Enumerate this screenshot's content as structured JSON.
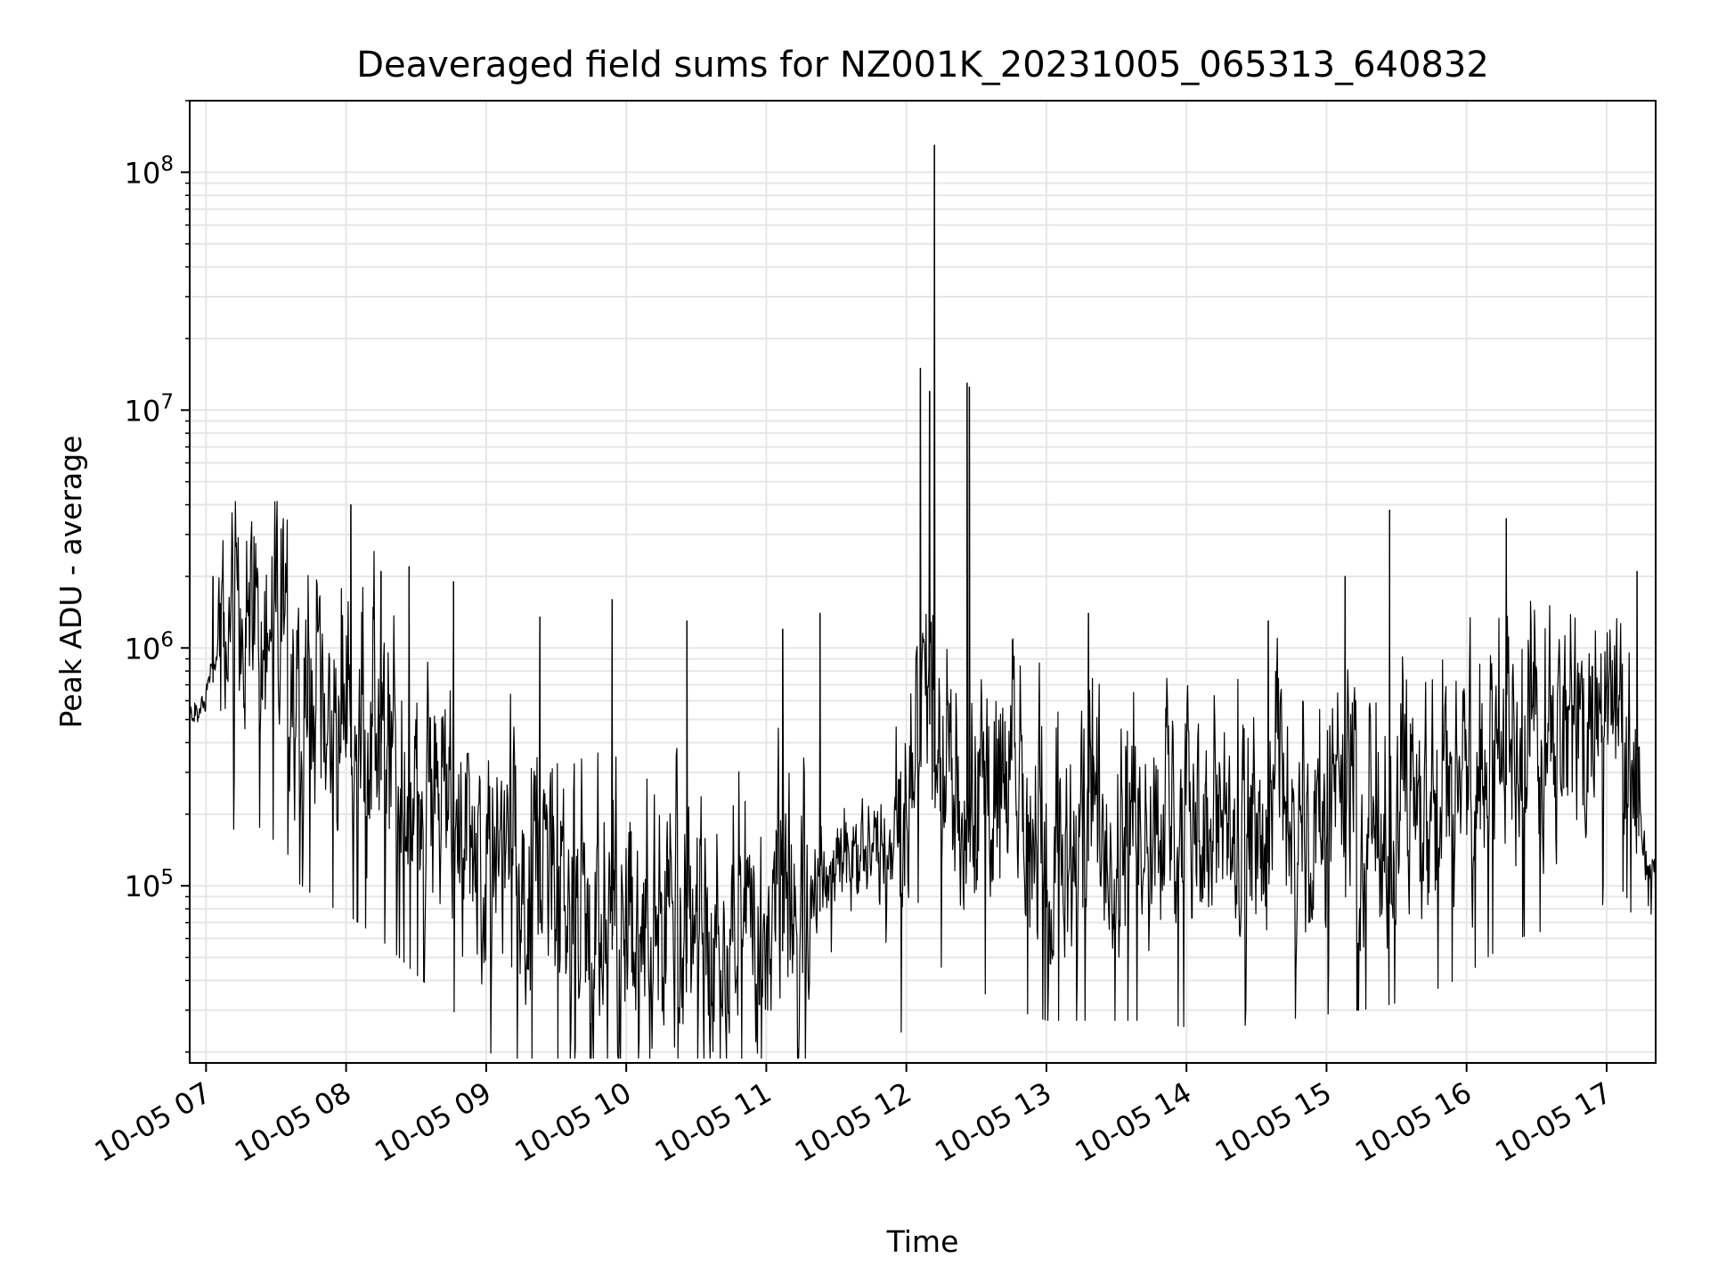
{
  "chart_data": {
    "type": "line",
    "title": "Deaveraged field sums for NZ001K_20231005_065313_640832",
    "xlabel": "Time",
    "ylabel": "Peak ADU - average",
    "yscale": "log",
    "xlim": [
      "10-05 06:53",
      "10-05 17:21"
    ],
    "ylim": [
      18000,
      200000000
    ],
    "xticks": [
      "10-05 07",
      "10-05 08",
      "10-05 09",
      "10-05 10",
      "10-05 11",
      "10-05 12",
      "10-05 13",
      "10-05 14",
      "10-05 15",
      "10-05 16",
      "10-05 17"
    ],
    "yticks": [
      {
        "value": 100000,
        "base": "10",
        "exp": "5"
      },
      {
        "value": 1000000,
        "base": "10",
        "exp": "6"
      },
      {
        "value": 10000000,
        "base": "10",
        "exp": "7"
      },
      {
        "value": 100000000,
        "base": "10",
        "exp": "8"
      }
    ],
    "grid": true,
    "line_color": "#000000",
    "series": [
      {
        "x": [
          "10-05 06:53",
          "10-05 06:58",
          "10-05 07:00",
          "10-05 07:03",
          "10-05 07:10",
          "10-05 07:20",
          "10-05 07:30",
          "10-05 07:35",
          "10-05 07:40",
          "10-05 07:50",
          "10-05 08:00",
          "10-05 08:15",
          "10-05 08:30",
          "10-05 08:45",
          "10-05 09:00",
          "10-05 09:20",
          "10-05 09:40",
          "10-05 10:00",
          "10-05 10:20",
          "10-05 10:40",
          "10-05 11:00",
          "10-05 11:10",
          "10-05 11:20",
          "10-05 11:30",
          "10-05 11:40",
          "10-05 11:50",
          "10-05 12:00",
          "10-05 12:05",
          "10-05 12:10",
          "10-05 12:13",
          "10-05 12:20",
          "10-05 12:27",
          "10-05 12:35",
          "10-05 12:45",
          "10-05 13:00",
          "10-05 13:20",
          "10-05 13:40",
          "10-05 14:00",
          "10-05 14:20",
          "10-05 14:40",
          "10-05 15:00",
          "10-05 15:20",
          "10-05 15:40",
          "10-05 16:00",
          "10-05 16:10",
          "10-05 16:20",
          "10-05 16:40",
          "10-05 17:00",
          "10-05 17:05",
          "10-05 17:10",
          "10-05 17:15",
          "10-05 17:21"
        ],
        "y": [
          500000,
          550000,
          650000,
          900000,
          1000000,
          1100000,
          900000,
          800000,
          600000,
          500000,
          450000,
          350000,
          250000,
          180000,
          120000,
          90000,
          75000,
          65000,
          60000,
          58000,
          60000,
          70000,
          90000,
          120000,
          130000,
          120000,
          150000,
          500000,
          600000,
          300000,
          200000,
          250000,
          200000,
          180000,
          160000,
          160000,
          160000,
          150000,
          150000,
          160000,
          170000,
          180000,
          200000,
          250000,
          300000,
          350000,
          400000,
          500000,
          600000,
          500000,
          150000,
          100000
        ]
      }
    ],
    "spikes": [
      {
        "x": "10-05 07:03",
        "y": 2000000
      },
      {
        "x": "10-05 08:02",
        "y": 4000000
      },
      {
        "x": "10-05 08:15",
        "y": 2100000
      },
      {
        "x": "10-05 08:27",
        "y": 2200000
      },
      {
        "x": "10-05 08:46",
        "y": 1900000
      },
      {
        "x": "10-05 09:23",
        "y": 1350000
      },
      {
        "x": "10-05 09:54",
        "y": 1600000
      },
      {
        "x": "10-05 10:26",
        "y": 1300000
      },
      {
        "x": "10-05 11:07",
        "y": 1200000
      },
      {
        "x": "10-05 11:23",
        "y": 1400000
      },
      {
        "x": "10-05 12:06",
        "y": 15000000
      },
      {
        "x": "10-05 12:10",
        "y": 12000000
      },
      {
        "x": "10-05 12:12",
        "y": 130000000
      },
      {
        "x": "10-05 12:26",
        "y": 13000000
      },
      {
        "x": "10-05 12:27",
        "y": 12500000
      },
      {
        "x": "10-05 13:18",
        "y": 1400000
      },
      {
        "x": "10-05 14:35",
        "y": 1300000
      },
      {
        "x": "10-05 15:08",
        "y": 2000000
      },
      {
        "x": "10-05 15:27",
        "y": 3800000
      },
      {
        "x": "10-05 16:17",
        "y": 3500000
      },
      {
        "x": "10-05 17:13",
        "y": 2100000
      }
    ]
  }
}
